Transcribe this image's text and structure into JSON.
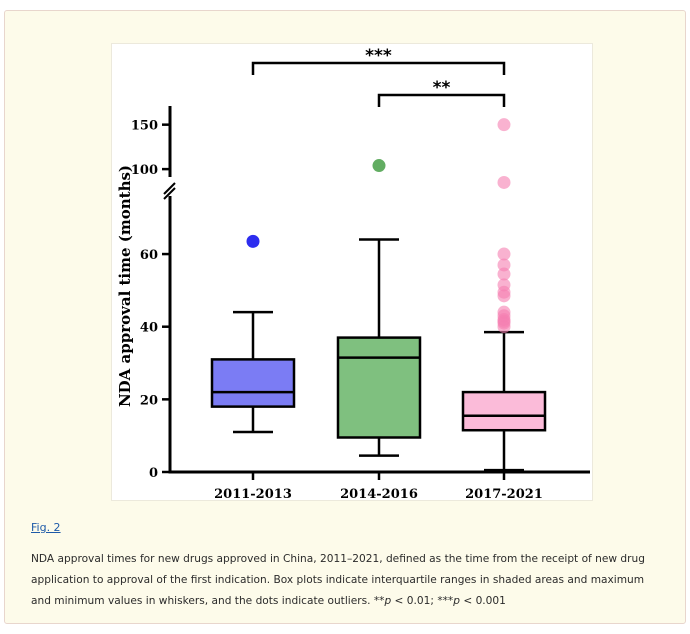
{
  "figure_link": "Fig. 2",
  "caption": {
    "main": "NDA approval times for new drugs approved in China, 2011–2021, defined as the time from the receipt of new drug application to approval of the first indication. Box plots indicate interquartile ranges in shaded areas and maximum and minimum values in whiskers, and the dots indicate outliers. ",
    "sig1_stars": "**",
    "p1_letter": "p",
    "sig1_rest": " < 0.01; ",
    "sig2_stars": "***",
    "p2_letter": "p",
    "sig2_rest": " < 0.001"
  },
  "chart_data": {
    "type": "box",
    "ylabel": "NDA approval time (months)",
    "xlabel": "",
    "y_axis": {
      "lower_segment": [
        0,
        68
      ],
      "upper_segment": [
        90,
        162
      ],
      "broken": true,
      "ticks": [
        0,
        20,
        40,
        60,
        100,
        150
      ]
    },
    "categories": [
      "2011-2013",
      "2014-2016",
      "2017-2021"
    ],
    "colors": [
      "#7b7cf4",
      "#7fc07f",
      "#fbbbd9"
    ],
    "outlier_colors": [
      "#2222ee",
      "#5aa95a",
      "#f57fb0"
    ],
    "boxes": [
      {
        "min": 11,
        "q1": 18,
        "median": 22,
        "q3": 31,
        "max": 44,
        "outliers": [
          63.5
        ]
      },
      {
        "min": 4.5,
        "q1": 9.5,
        "median": 31.5,
        "q3": 37,
        "max": 64,
        "outliers": [
          104
        ]
      },
      {
        "min": 0.5,
        "q1": 11.5,
        "median": 15.5,
        "q3": 22,
        "max": 38.5,
        "outliers": [
          40,
          41,
          41.5,
          42,
          43,
          44,
          48.5,
          49.5,
          51.5,
          54.5,
          57,
          60,
          85,
          150
        ]
      }
    ],
    "significance": [
      {
        "from": "2011-2013",
        "to": "2017-2021",
        "label": "***"
      },
      {
        "from": "2014-2016",
        "to": "2017-2021",
        "label": "**"
      }
    ]
  }
}
